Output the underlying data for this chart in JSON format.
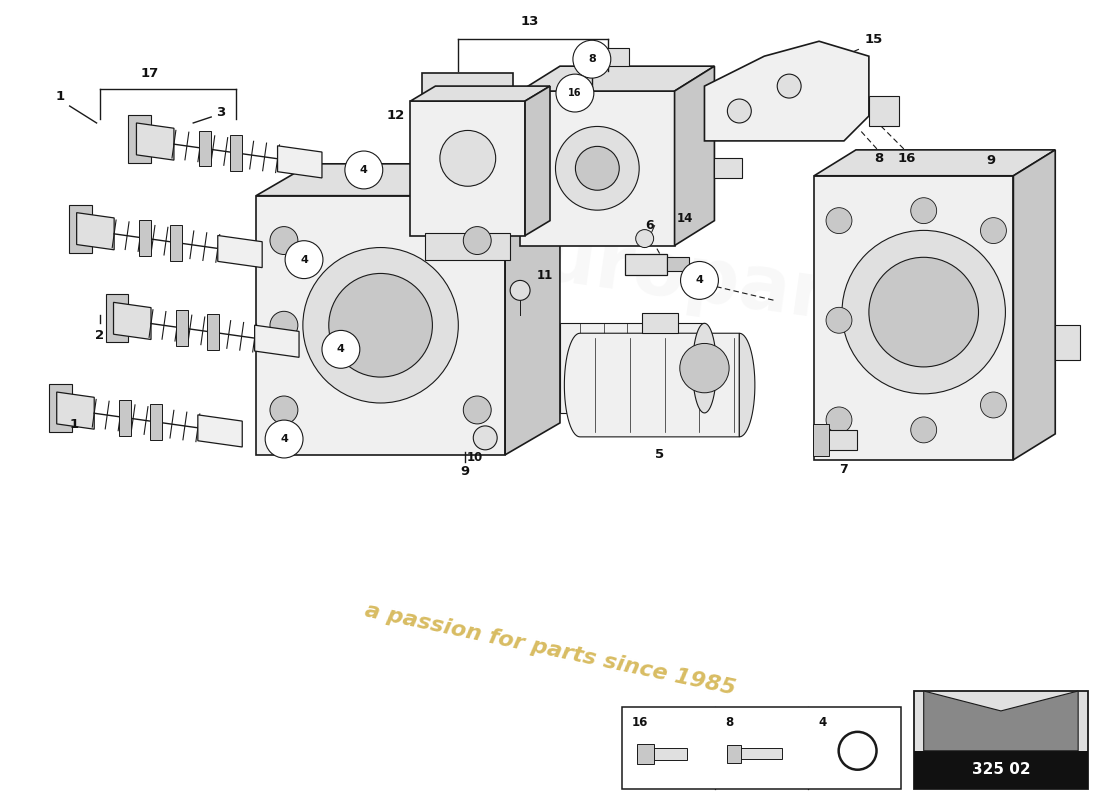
{
  "background_color": "#ffffff",
  "line_color": "#1a1a1a",
  "fill_white": "#ffffff",
  "fill_light": "#f0f0f0",
  "fill_mid": "#e0e0e0",
  "fill_dark": "#c8c8c8",
  "fill_darker": "#aaaaaa",
  "watermark_text": "a passion for parts since 1985",
  "watermark_color": "#c8a020",
  "part_code": "325 02",
  "text_color": "#111111"
}
